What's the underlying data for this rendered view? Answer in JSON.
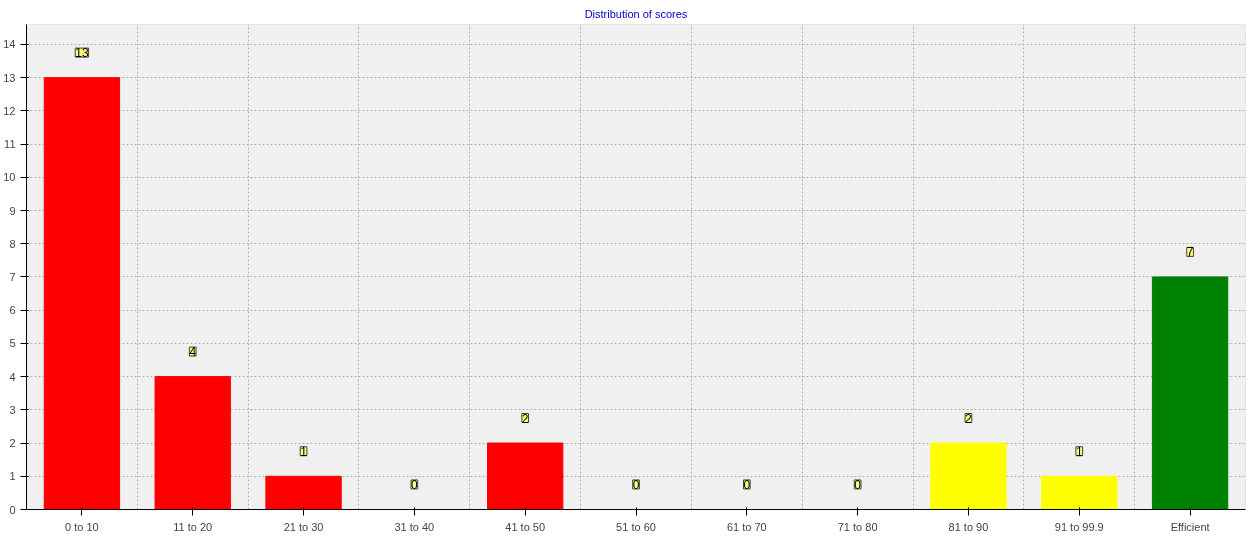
{
  "chart_data": {
    "type": "bar",
    "title": "Distribution of scores",
    "categories": [
      "0 to 10",
      "11 to 20",
      "21 to 30",
      "31 to 40",
      "41 to 50",
      "51 to 60",
      "61 to 70",
      "71 to 80",
      "81 to 90",
      "91 to 99.9",
      "Efficient"
    ],
    "values": [
      13,
      4,
      1,
      0,
      2,
      0,
      0,
      0,
      2,
      1,
      7
    ],
    "colors": [
      "#ff0000",
      "#ff0000",
      "#ff0000",
      "#ff0000",
      "#ff0000",
      "#ff0000",
      "#ff0000",
      "#ff0000",
      "#ffff00",
      "#ffff00",
      "#008000"
    ],
    "ylim": [
      0,
      14.6
    ],
    "yticks": [
      0,
      1,
      2,
      3,
      4,
      5,
      6,
      7,
      8,
      9,
      10,
      11,
      12,
      13,
      14
    ],
    "grid": true,
    "data_labels": true
  }
}
